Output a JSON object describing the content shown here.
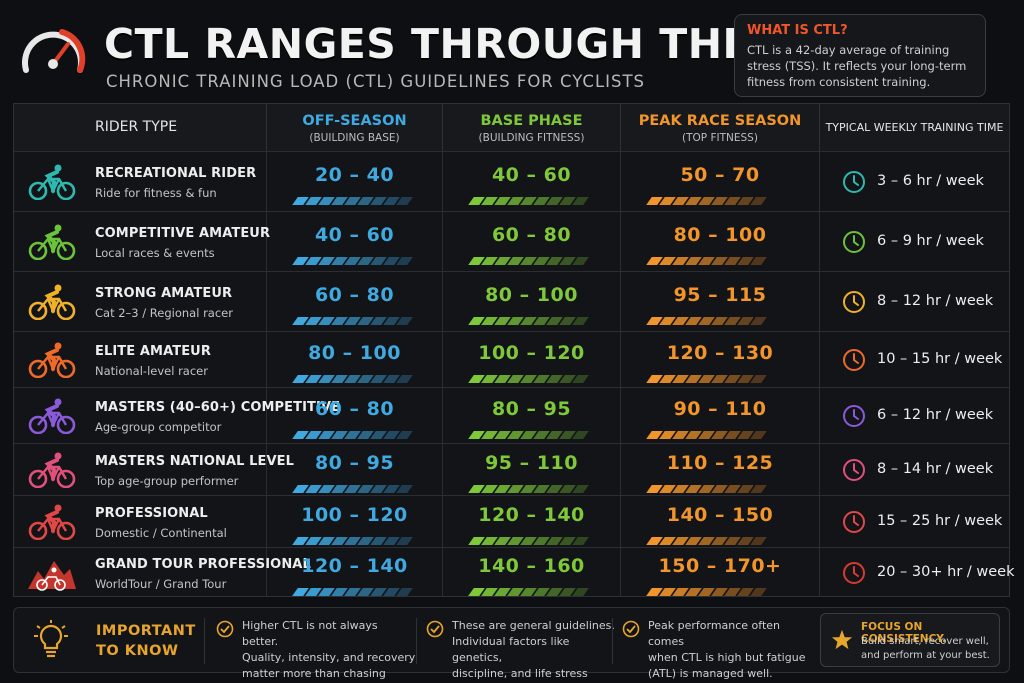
{
  "header": {
    "title": "CTL RANGES THROUGH THE SEASON",
    "subtitle": "CHRONIC TRAINING LOAD (CTL) GUIDELINES FOR CYCLISTS"
  },
  "info_box": {
    "title": "WHAT IS CTL?",
    "body": "CTL is a 42-day average of training stress (TSS). It reflects your long-term fitness from consistent training."
  },
  "columns": {
    "rider": "RIDER TYPE",
    "off": {
      "title": "OFF-SEASON",
      "sub": "(BUILDING BASE)",
      "color": "#3fa9e0"
    },
    "base": {
      "title": "BASE PHASE",
      "sub": "(BUILDING FITNESS)",
      "color": "#7ec83a"
    },
    "peak": {
      "title": "PEAK RACE SEASON",
      "sub": "(TOP FITNESS)",
      "color": "#f2952a"
    },
    "time": "TYPICAL WEEKLY TRAINING TIME"
  },
  "rows": [
    {
      "name": "RECREATIONAL RIDER",
      "desc": "Ride for fitness & fun",
      "off": "20 – 40",
      "base": "40 – 60",
      "peak": "50 – 70",
      "time": "3 – 6 hr / week",
      "color": "#2fb8b0",
      "icon": "cyclist-icon"
    },
    {
      "name": "COMPETITIVE AMATEUR",
      "desc": "Local races & events",
      "off": "40 – 60",
      "base": "60 – 80",
      "peak": "80 – 100",
      "time": "6 – 9 hr / week",
      "color": "#6cc23a",
      "icon": "cyclist-icon"
    },
    {
      "name": "STRONG AMATEUR",
      "desc": "Cat 2–3  /  Regional racer",
      "off": "60 – 80",
      "base": "80 – 100",
      "peak": "95 – 115",
      "time": "8 – 12 hr / week",
      "color": "#f0b02a",
      "icon": "cyclist-icon"
    },
    {
      "name": "ELITE AMATEUR",
      "desc": "National-level racer",
      "off": "80 – 100",
      "base": "100 – 120",
      "peak": "120 – 130",
      "time": "10 – 15 hr / week",
      "color": "#ee6a2a",
      "icon": "cyclist-icon"
    },
    {
      "name": "MASTERS (40–60+) COMPETITIVE",
      "desc": "Age-group competitor",
      "off": "60 – 80",
      "base": "80 – 95",
      "peak": "90 – 110",
      "time": "6 – 12 hr / week",
      "color": "#8a5ad8",
      "icon": "cyclist-icon"
    },
    {
      "name": "MASTERS NATIONAL LEVEL",
      "desc": "Top age-group performer",
      "off": "80 – 95",
      "base": "95 – 110",
      "peak": "110 – 125",
      "time": "8 – 14 hr / week",
      "color": "#e0507a",
      "icon": "cyclist-icon"
    },
    {
      "name": "PROFESSIONAL",
      "desc": "Domestic / Continental",
      "off": "100 – 120",
      "base": "120 – 140",
      "peak": "140 – 150",
      "time": "15 – 25 hr / week",
      "color": "#e04848",
      "icon": "cyclist-icon"
    },
    {
      "name": "GRAND TOUR PROFESSIONAL",
      "desc": "WorldTour / Grand Tour",
      "off": "120 – 140",
      "base": "140 – 160",
      "peak": "150 – 170+",
      "time": "20 – 30+ hr / week",
      "color": "#d83a30",
      "icon": "mountain-cyclist-icon"
    }
  ],
  "footer": {
    "important": [
      "IMPORTANT",
      "TO KNOW"
    ],
    "notes": [
      [
        "Higher CTL is not always better.",
        "Quality, intensity, and recovery",
        "matter more than chasing numbers."
      ],
      [
        "These are general guidelines.",
        "Individual factors like genetics,",
        "discipline, and life stress vary."
      ],
      [
        "Peak performance often comes",
        "when CTL is high but fatigue",
        "(ATL) is managed well."
      ]
    ],
    "focus_title": "FOCUS ON CONSISTENCY.",
    "focus_body": [
      "Build smart, recover well,",
      "and perform at your best."
    ],
    "accent": "#e8a52e"
  }
}
